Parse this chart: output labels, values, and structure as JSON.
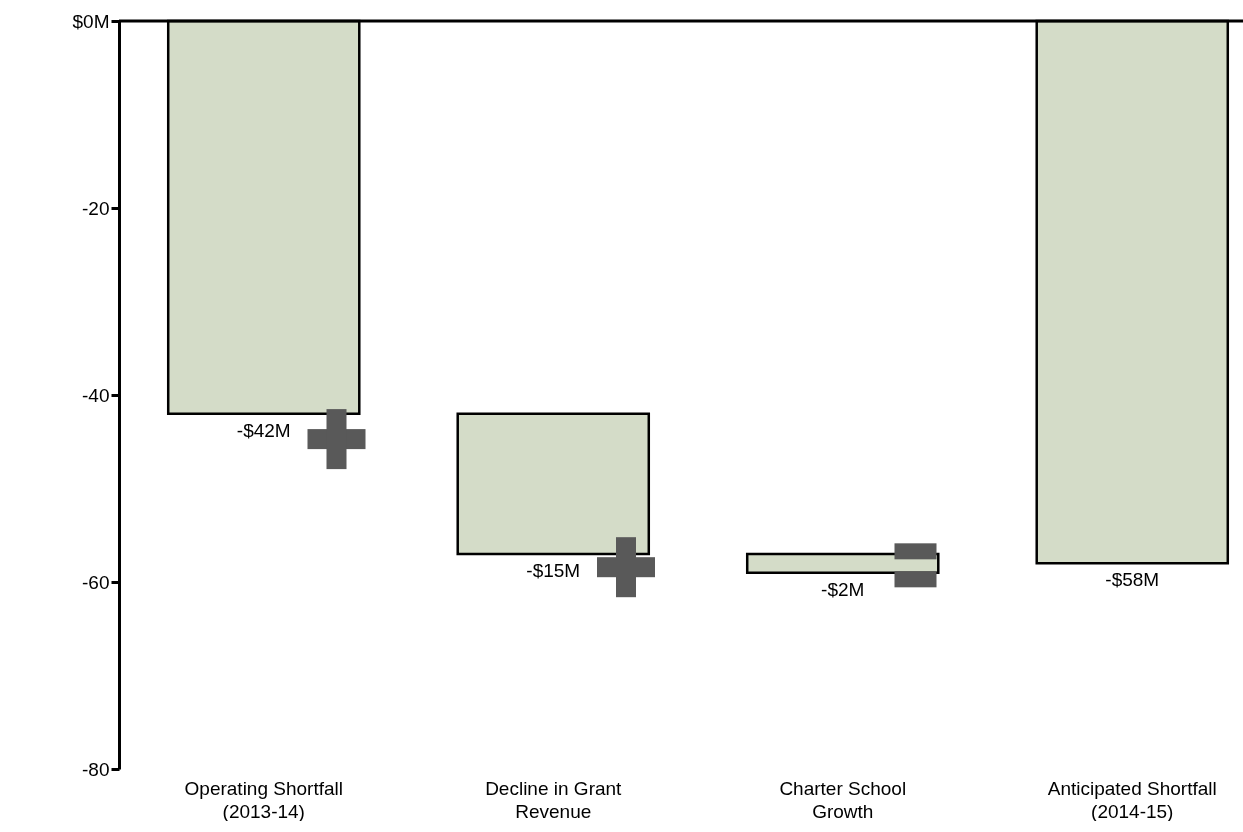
{
  "chart_data": {
    "type": "bar",
    "categories": [
      "Operating Shortfall\n(2013-14)",
      "Decline in Grant\nRevenue",
      "Charter School\nGrowth",
      "Anticipated Shortfall\n(2014-15)"
    ],
    "values": [
      -42,
      -15,
      -2,
      -58
    ],
    "base": [
      0,
      -42,
      -57,
      0
    ],
    "value_labels": [
      "-$42M",
      "-$15M",
      "-$2M",
      "-$58M"
    ],
    "color": "#d4dcc8",
    "ylim": [
      -80,
      0
    ],
    "yticks": [
      {
        "value": 0,
        "label": "$0M"
      },
      -20,
      -40,
      -60,
      -80
    ],
    "ref_lines": [
      {
        "axis": "y",
        "value": 0
      }
    ],
    "grid": false
  }
}
